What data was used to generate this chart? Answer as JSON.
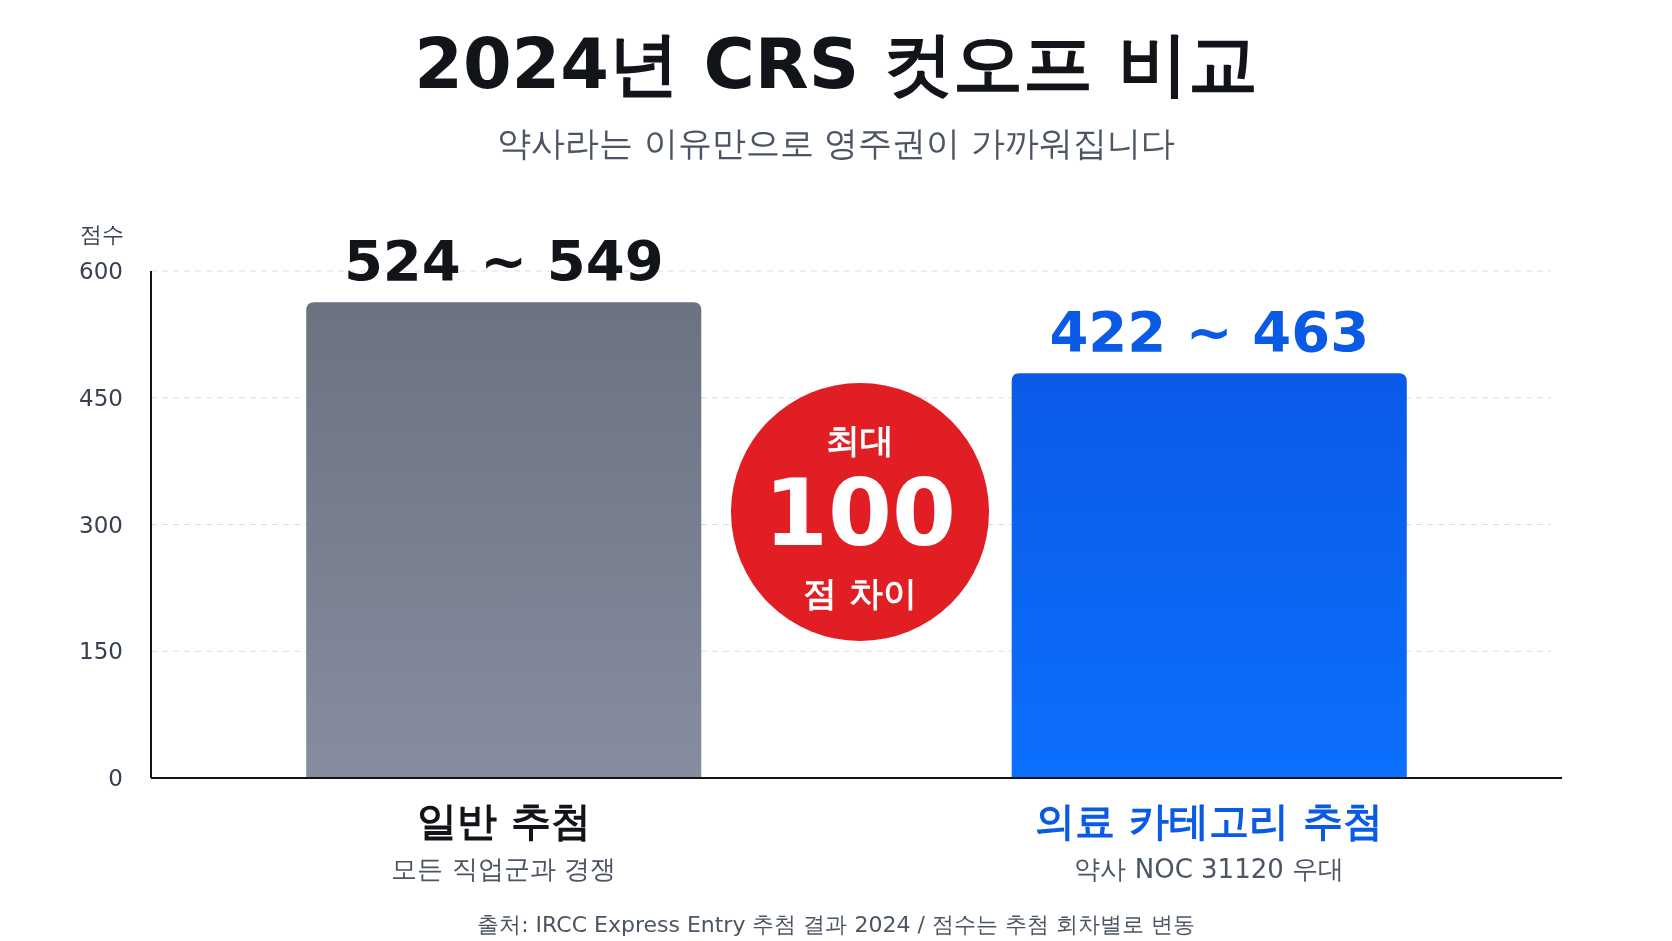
{
  "chart_data": {
    "type": "bar",
    "title": "2024년 CRS 컷오프 비교",
    "subtitle": "약사라는 이유만으로 영주권이 가까워집니다",
    "ylabel": "점수",
    "categories": [
      "일반 추첨",
      "의료 카테고리 추첨"
    ],
    "values": [
      563,
      479
    ],
    "colors": [
      "#6b7280",
      "#0a5ae6"
    ],
    "ylim": [
      0,
      600
    ],
    "yticks": [
      0,
      150,
      300,
      450,
      600
    ],
    "grid": "y",
    "annotations": [
      "모든 직업군과 경쟁",
      "약사 NOC 31120 우대",
      "최대\n100\n점 차이",
      "출처: IRCC Express Entry 추첨 결과 2024 / 점수는 추첨 회차별로 변동",
      {
        "text": "524 ~ 549",
        "x": "일반 추첨",
        "y": 563
      },
      {
        "text": "422 ~ 463",
        "x": "의료 카테고리 추첨",
        "y": 479
      }
    ]
  }
}
